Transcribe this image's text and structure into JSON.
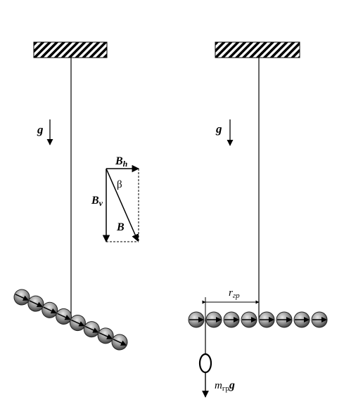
{
  "labels": {
    "g_left": "g",
    "g_right": "g",
    "B_h_main": "B",
    "B_h_sub": "h",
    "B_v_main": "B",
    "B_v_sub": "v",
    "B": "B",
    "beta": "β",
    "r_main": "r",
    "r_sub": "гр",
    "mg_main": "m",
    "mg_sub": "гр",
    "mg_g": "g"
  },
  "diagram": {
    "left_chain_beads": 8,
    "right_chain_beads": 8
  }
}
